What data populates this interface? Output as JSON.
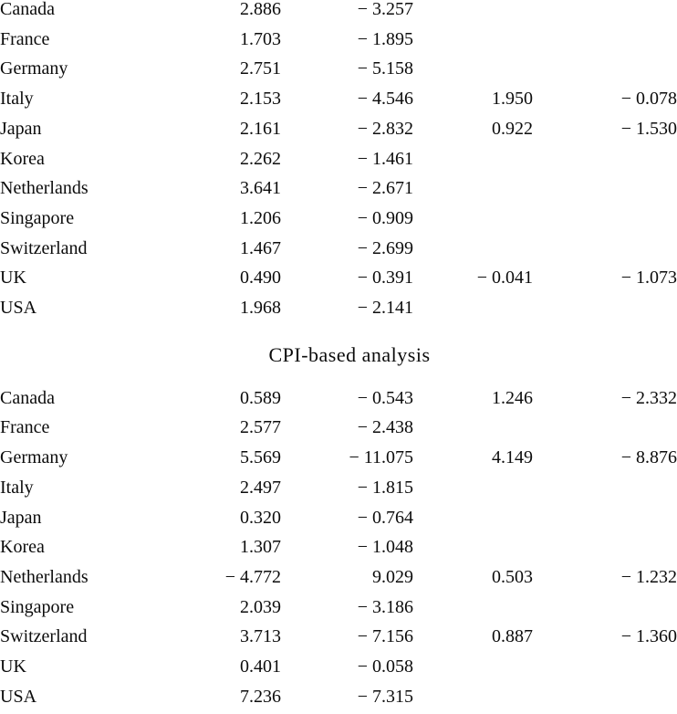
{
  "document": {
    "sections": [
      {
        "title": "",
        "rows": [
          {
            "country": "Canada",
            "col1": "2.886",
            "col2": "− 3.257",
            "col3": "",
            "col4": ""
          },
          {
            "country": "France",
            "col1": "1.703",
            "col2": "− 1.895",
            "col3": "",
            "col4": ""
          },
          {
            "country": "Germany",
            "col1": "2.751",
            "col2": "− 5.158",
            "col3": "",
            "col4": ""
          },
          {
            "country": "Italy",
            "col1": "2.153",
            "col2": "− 4.546",
            "col3": "1.950",
            "col4": "− 0.078"
          },
          {
            "country": "Japan",
            "col1": "2.161",
            "col2": "− 2.832",
            "col3": "0.922",
            "col4": "− 1.530"
          },
          {
            "country": "Korea",
            "col1": "2.262",
            "col2": "− 1.461",
            "col3": "",
            "col4": ""
          },
          {
            "country": "Netherlands",
            "col1": "3.641",
            "col2": "− 2.671",
            "col3": "",
            "col4": ""
          },
          {
            "country": "Singapore",
            "col1": "1.206",
            "col2": "− 0.909",
            "col3": "",
            "col4": ""
          },
          {
            "country": "Switzerland",
            "col1": "1.467",
            "col2": "− 2.699",
            "col3": "",
            "col4": ""
          },
          {
            "country": "UK",
            "col1": "0.490",
            "col2": "− 0.391",
            "col3": "− 0.041",
            "col4": "− 1.073"
          },
          {
            "country": "USA",
            "col1": "1.968",
            "col2": "− 2.141",
            "col3": "",
            "col4": ""
          }
        ]
      },
      {
        "title": "CPI-based analysis",
        "rows": [
          {
            "country": "Canada",
            "col1": "0.589",
            "col2": "− 0.543",
            "col3": "1.246",
            "col4": "− 2.332"
          },
          {
            "country": "France",
            "col1": "2.577",
            "col2": "− 2.438",
            "col3": "",
            "col4": ""
          },
          {
            "country": "Germany",
            "col1": "5.569",
            "col2": "− 11.075",
            "col3": "4.149",
            "col4": "− 8.876"
          },
          {
            "country": "Italy",
            "col1": "2.497",
            "col2": "− 1.815",
            "col3": "",
            "col4": ""
          },
          {
            "country": "Japan",
            "col1": "0.320",
            "col2": "− 0.764",
            "col3": "",
            "col4": ""
          },
          {
            "country": "Korea",
            "col1": "1.307",
            "col2": "− 1.048",
            "col3": "",
            "col4": ""
          },
          {
            "country": "Netherlands",
            "col1": "− 4.772",
            "col2": "9.029",
            "col3": "0.503",
            "col4": "− 1.232"
          },
          {
            "country": "Singapore",
            "col1": "2.039",
            "col2": "− 3.186",
            "col3": "",
            "col4": ""
          },
          {
            "country": "Switzerland",
            "col1": "3.713",
            "col2": "− 7.156",
            "col3": "0.887",
            "col4": "− 1.360"
          },
          {
            "country": "UK",
            "col1": "0.401",
            "col2": "− 0.058",
            "col3": "",
            "col4": ""
          },
          {
            "country": "USA",
            "col1": "7.236",
            "col2": "− 7.315",
            "col3": "",
            "col4": ""
          }
        ]
      }
    ]
  }
}
